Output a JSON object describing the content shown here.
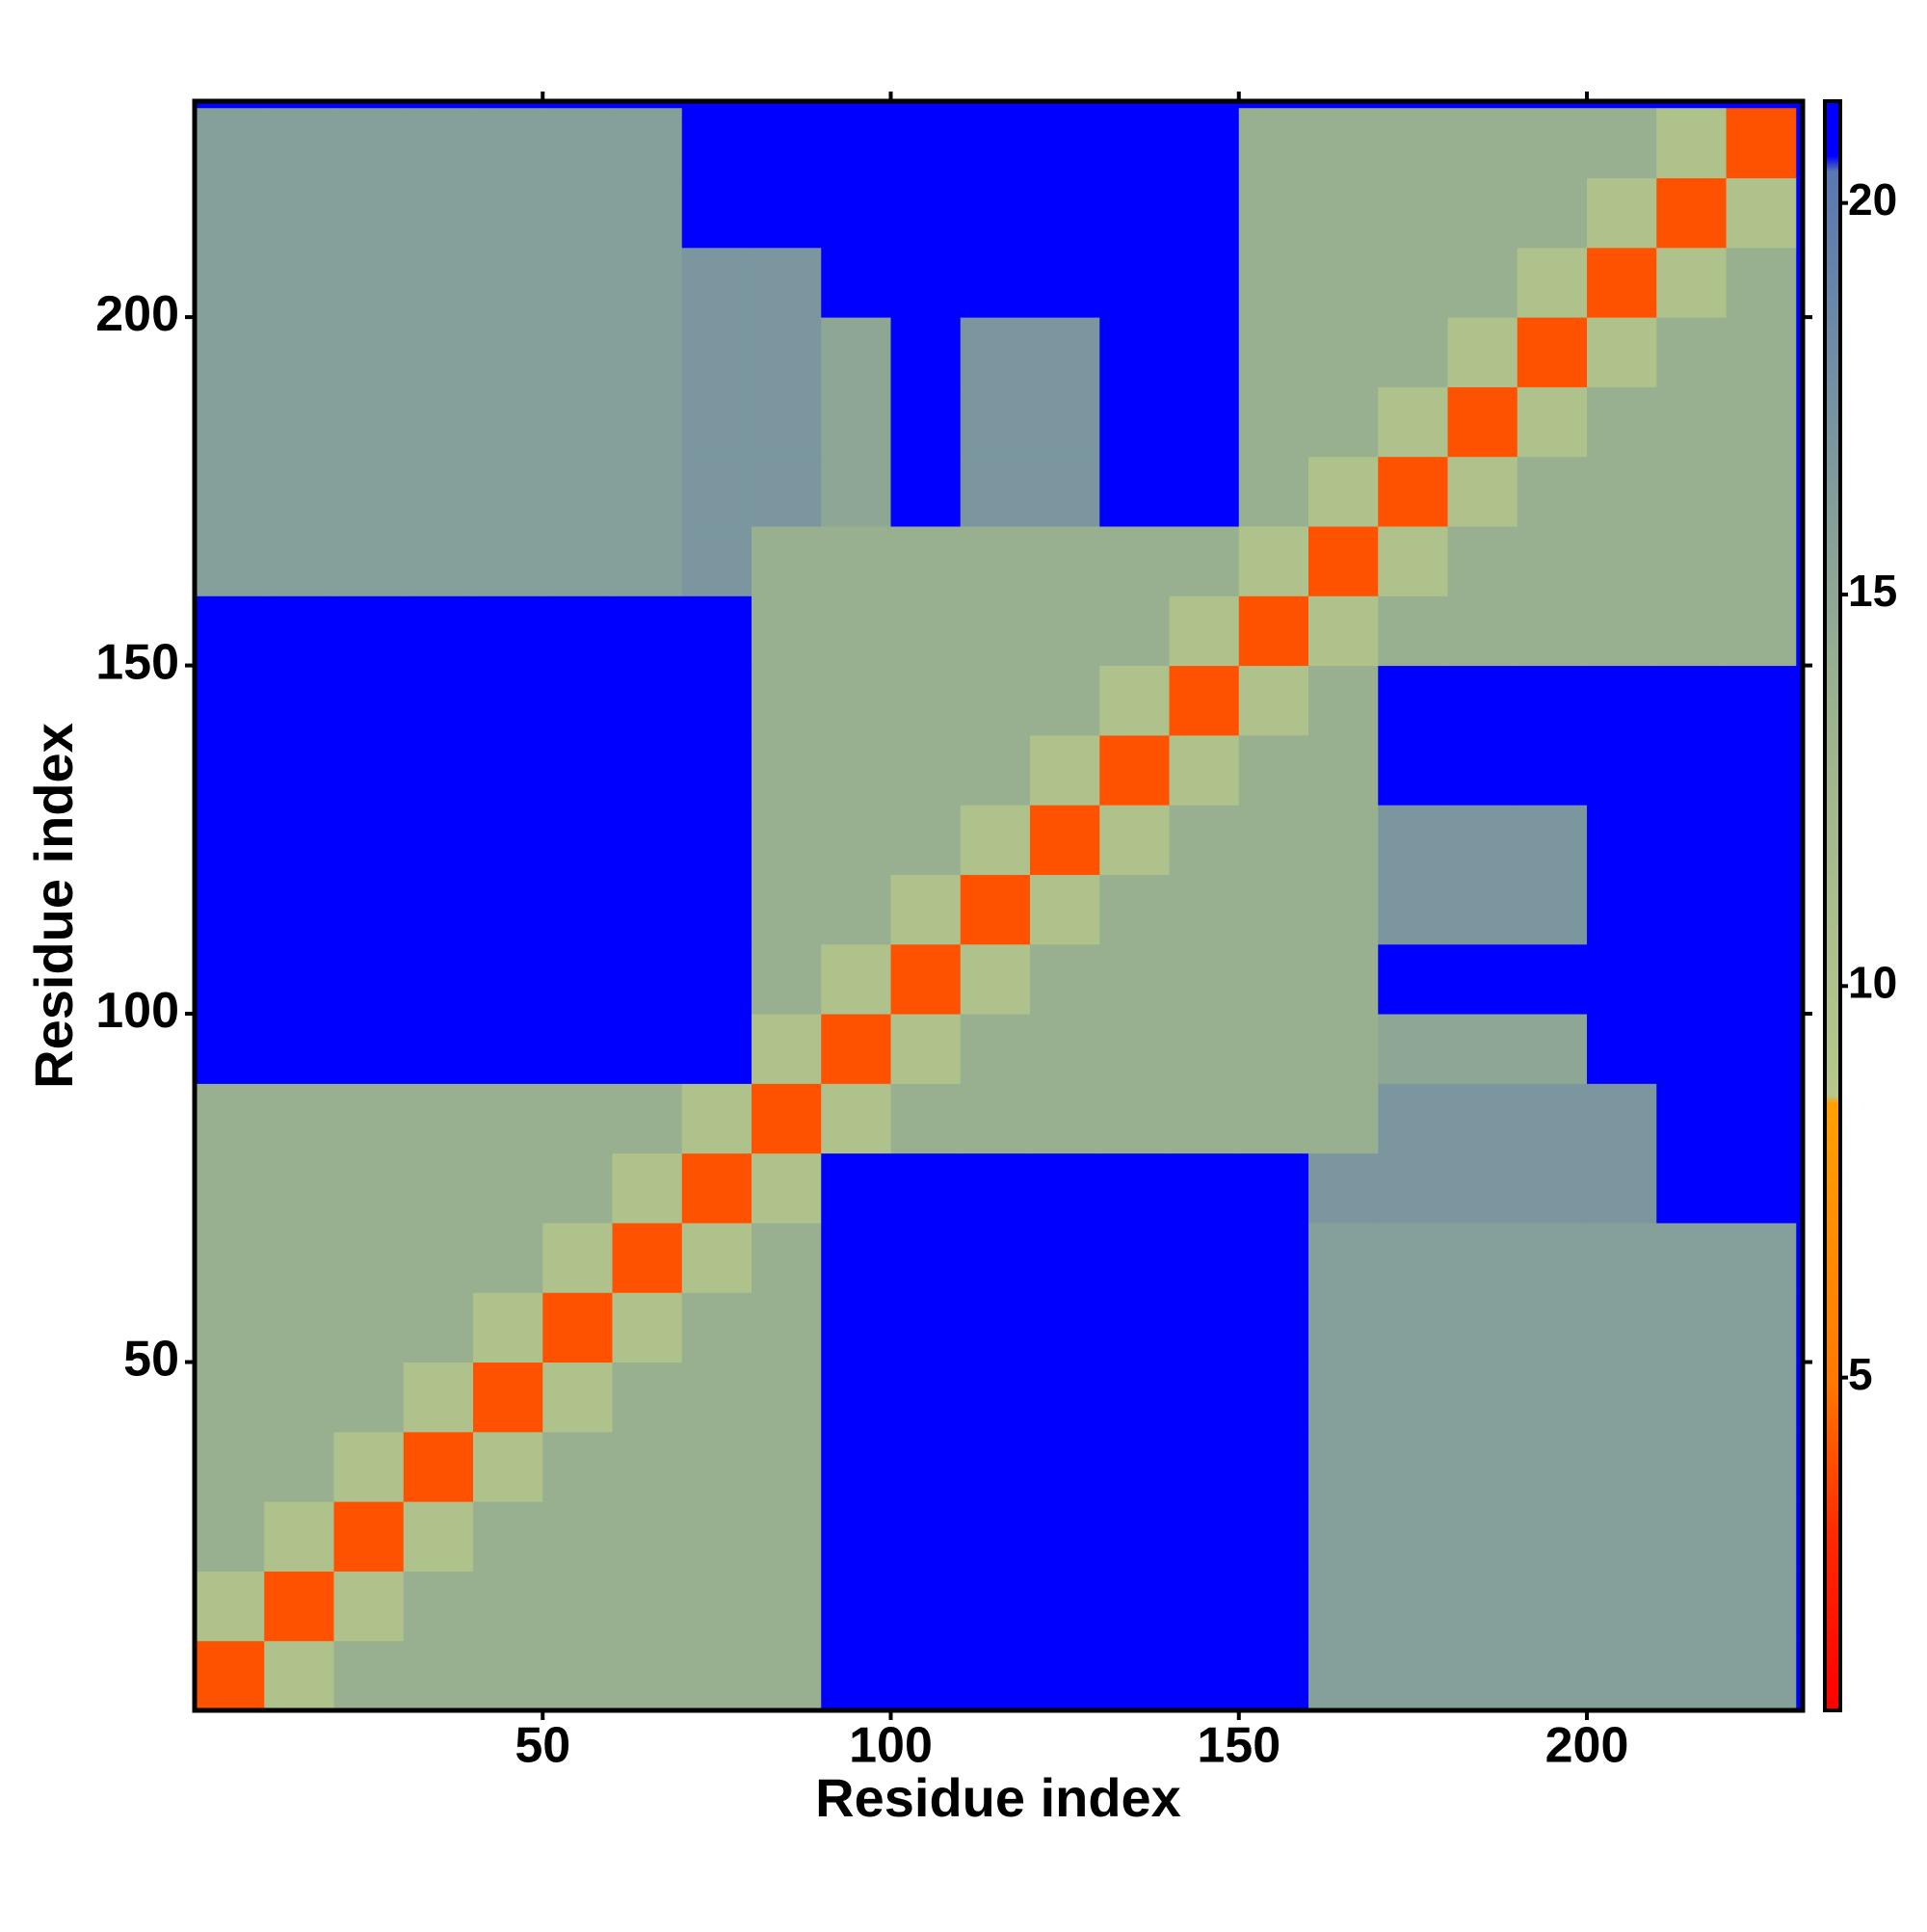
{
  "chart_data": {
    "type": "heatmap",
    "xlabel": "Residue index",
    "ylabel": "Residue index",
    "bins": [
      0,
      10,
      20,
      30,
      40,
      50,
      60,
      70,
      80,
      90,
      100,
      110,
      120,
      130,
      140,
      150,
      160,
      170,
      180,
      190,
      200,
      210,
      220,
      230
    ],
    "xlim": [
      0,
      231
    ],
    "ylim": [
      0,
      231
    ],
    "xticks": [
      50,
      100,
      150,
      200
    ],
    "yticks": [
      50,
      100,
      150,
      200
    ],
    "values": [
      [
        4,
        10,
        14,
        14,
        14,
        14,
        14,
        14,
        14,
        21,
        21,
        21,
        21,
        21,
        21,
        21,
        16,
        16,
        16,
        16,
        16,
        16,
        16
      ],
      [
        10,
        4,
        10,
        14,
        14,
        14,
        14,
        14,
        14,
        21,
        21,
        21,
        21,
        21,
        21,
        21,
        16,
        16,
        16,
        16,
        16,
        16,
        16
      ],
      [
        14,
        10,
        4,
        10,
        14,
        14,
        14,
        14,
        14,
        21,
        21,
        21,
        21,
        21,
        21,
        21,
        16,
        16,
        16,
        16,
        16,
        16,
        16
      ],
      [
        14,
        14,
        10,
        4,
        10,
        14,
        14,
        14,
        14,
        21,
        21,
        21,
        21,
        21,
        21,
        21,
        16,
        16,
        16,
        16,
        16,
        16,
        16
      ],
      [
        14,
        14,
        14,
        10,
        4,
        10,
        14,
        14,
        14,
        21,
        21,
        21,
        21,
        21,
        21,
        21,
        16,
        16,
        16,
        16,
        16,
        16,
        16
      ],
      [
        14,
        14,
        14,
        14,
        10,
        4,
        10,
        14,
        14,
        21,
        21,
        21,
        21,
        21,
        21,
        21,
        16,
        16,
        16,
        16,
        16,
        16,
        16
      ],
      [
        14,
        14,
        14,
        14,
        14,
        10,
        4,
        10,
        14,
        21,
        21,
        21,
        21,
        21,
        21,
        21,
        16,
        16,
        16,
        16,
        16,
        16,
        16
      ],
      [
        14,
        14,
        14,
        14,
        14,
        14,
        10,
        4,
        10,
        21,
        21,
        21,
        21,
        21,
        21,
        21,
        17,
        17,
        17,
        17,
        17,
        21,
        21
      ],
      [
        14,
        14,
        14,
        14,
        14,
        14,
        14,
        10,
        4,
        10,
        14,
        14,
        14,
        14,
        14,
        14,
        14,
        17,
        17,
        17,
        17,
        21,
        21
      ],
      [
        21,
        21,
        21,
        21,
        21,
        21,
        21,
        21,
        10,
        4,
        10,
        14,
        14,
        14,
        14,
        14,
        14,
        15,
        15,
        15,
        21,
        21,
        21
      ],
      [
        21,
        21,
        21,
        21,
        21,
        21,
        21,
        21,
        14,
        10,
        4,
        10,
        14,
        14,
        14,
        14,
        14,
        21,
        21,
        21,
        21,
        21,
        21
      ],
      [
        21,
        21,
        21,
        21,
        21,
        21,
        21,
        21,
        14,
        14,
        10,
        4,
        10,
        14,
        14,
        14,
        14,
        17,
        17,
        17,
        21,
        21,
        21
      ],
      [
        21,
        21,
        21,
        21,
        21,
        21,
        21,
        21,
        14,
        14,
        14,
        10,
        4,
        10,
        14,
        14,
        14,
        17,
        17,
        17,
        21,
        21,
        21
      ],
      [
        21,
        21,
        21,
        21,
        21,
        21,
        21,
        21,
        14,
        14,
        14,
        14,
        10,
        4,
        10,
        14,
        14,
        21,
        21,
        21,
        21,
        21,
        21
      ],
      [
        21,
        21,
        21,
        21,
        21,
        21,
        21,
        21,
        14,
        14,
        14,
        14,
        14,
        10,
        4,
        10,
        14,
        21,
        21,
        21,
        21,
        21,
        21
      ],
      [
        21,
        21,
        21,
        21,
        21,
        21,
        21,
        21,
        14,
        14,
        14,
        14,
        14,
        14,
        10,
        4,
        10,
        14,
        14,
        14,
        14,
        14,
        14
      ],
      [
        16,
        16,
        16,
        16,
        16,
        16,
        16,
        17,
        14,
        14,
        14,
        14,
        14,
        14,
        14,
        10,
        4,
        10,
        14,
        14,
        14,
        14,
        14
      ],
      [
        16,
        16,
        16,
        16,
        16,
        16,
        16,
        17,
        17,
        15,
        21,
        17,
        17,
        21,
        21,
        14,
        10,
        4,
        10,
        14,
        14,
        14,
        14
      ],
      [
        16,
        16,
        16,
        16,
        16,
        16,
        16,
        17,
        17,
        15,
        21,
        17,
        17,
        21,
        21,
        14,
        14,
        10,
        4,
        10,
        14,
        14,
        14
      ],
      [
        16,
        16,
        16,
        16,
        16,
        16,
        16,
        17,
        17,
        15,
        21,
        17,
        17,
        21,
        21,
        14,
        14,
        14,
        10,
        4,
        10,
        14,
        14
      ],
      [
        16,
        16,
        16,
        16,
        16,
        16,
        16,
        17,
        17,
        21,
        21,
        21,
        21,
        21,
        21,
        14,
        14,
        14,
        14,
        10,
        4,
        10,
        14
      ],
      [
        16,
        16,
        16,
        16,
        16,
        16,
        16,
        21,
        21,
        21,
        21,
        21,
        21,
        21,
        21,
        14,
        14,
        14,
        14,
        14,
        10,
        4,
        10
      ],
      [
        16,
        16,
        16,
        16,
        16,
        16,
        16,
        21,
        21,
        21,
        21,
        21,
        21,
        21,
        21,
        14,
        14,
        14,
        14,
        14,
        14,
        10,
        4
      ]
    ],
    "colorscale": [
      {
        "value": 0.75,
        "color": "#ff0000"
      },
      {
        "value": 3,
        "color": "#ff2a00"
      },
      {
        "value": 5,
        "color": "#ff7a00"
      },
      {
        "value": 8.5,
        "color": "#ffa000"
      },
      {
        "value": 8.6,
        "color": "#b8c88a"
      },
      {
        "value": 14,
        "color": "#98b090"
      },
      {
        "value": 20.4,
        "color": "#5a78b0"
      },
      {
        "value": 20.6,
        "color": "#0000ff"
      },
      {
        "value": 21.3,
        "color": "#0000ff"
      }
    ],
    "colorbar_lim": [
      0.75,
      21.3
    ],
    "colorbar_ticks": [
      5,
      10,
      15,
      20
    ]
  }
}
